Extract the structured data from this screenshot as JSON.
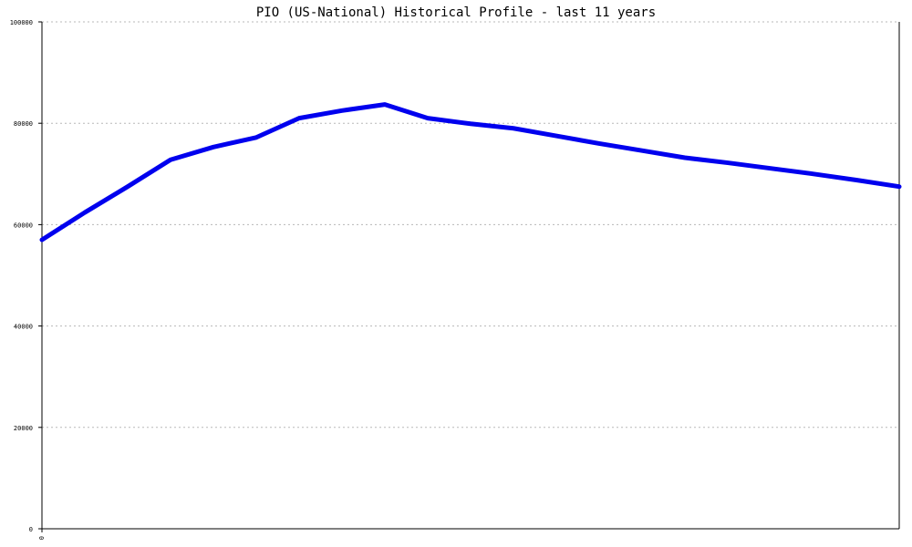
{
  "chart_data": {
    "type": "line",
    "title": "PIO (US-National) Historical Profile - last 11 years",
    "xlabel": "",
    "ylabel": "",
    "x_tick_labels": [
      "0"
    ],
    "y_ticks": [
      0,
      20000,
      40000,
      60000,
      80000,
      100000
    ],
    "ylim": [
      0,
      100000
    ],
    "grid": true,
    "series_color": "#0000ee",
    "series": [
      {
        "values": [
          57000,
          62400,
          67500,
          72800,
          75300,
          77200,
          81000,
          82500,
          83700,
          81000,
          79900,
          79000,
          77500,
          76000,
          74600,
          73200,
          72200,
          71100,
          70000,
          68800,
          67500
        ]
      }
    ]
  }
}
